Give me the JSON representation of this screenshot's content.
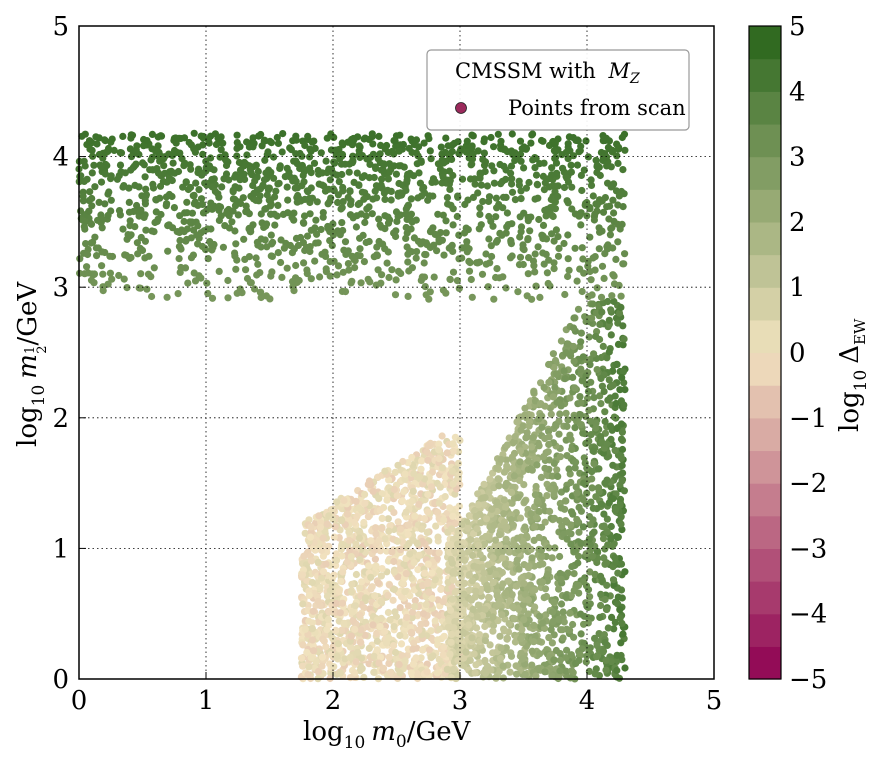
{
  "chart_data": {
    "type": "scatter",
    "title": "",
    "xlabel": "log10 m0/GeV",
    "ylabel": "log10 m1/2/GeV",
    "xlim": [
      0,
      5
    ],
    "ylim": [
      0,
      5
    ],
    "x_ticks": [
      "0",
      "1",
      "2",
      "3",
      "4",
      "5"
    ],
    "y_ticks": [
      "0",
      "1",
      "2",
      "3",
      "4",
      "5"
    ],
    "grid": true,
    "legend": {
      "placement": "top-right",
      "title": "CMSSM with",
      "title_symbol": "M",
      "title_subscript": "Z",
      "entries": [
        {
          "label": "Points from scan",
          "marker_color": "#9b2a5c"
        }
      ]
    },
    "colorbar": {
      "label": "log10 ΔEW",
      "range": [
        -5,
        5
      ],
      "ticks": [
        "5",
        "4",
        "3",
        "2",
        "1",
        "0",
        "−1",
        "−2",
        "−3",
        "−4",
        "−5"
      ],
      "levels": 20,
      "low_color": "#8e0152",
      "mid_color": "#f2e3bf",
      "high_color": "#276419"
    },
    "series": [
      {
        "name": "Points from scan",
        "description_regions": [
          {
            "region": "high_m12_band",
            "x_range": [
              0,
              4.3
            ],
            "y_range": [
              2.9,
              4.18
            ],
            "color_value_range": [
              3,
              4.5
            ]
          },
          {
            "region": "low_m0_valley",
            "x_range": [
              1.75,
              3.0
            ],
            "y_range": [
              0,
              1.6
            ],
            "color_value_range": [
              -0.5,
              0.5
            ]
          },
          {
            "region": "focus_point_strip",
            "x_range": [
              2.9,
              4.3
            ],
            "y_range": [
              0,
              2.9
            ],
            "color_value_range": [
              0.5,
              4.0
            ]
          }
        ]
      }
    ]
  },
  "labels": {
    "xlabel_base": "log",
    "xlabel_sub": "10",
    "xlabel_var": "m",
    "xlabel_var_sub": "0",
    "xlabel_unit": "/GeV",
    "ylabel_base": "log",
    "ylabel_sub": "10",
    "ylabel_var": "m",
    "ylabel_var_sub_num": "1",
    "ylabel_var_sub_den": "2",
    "ylabel_unit": "/GeV",
    "cbar_base": "log",
    "cbar_sub": "10",
    "cbar_var": "Δ",
    "cbar_var_sub": "EW"
  }
}
